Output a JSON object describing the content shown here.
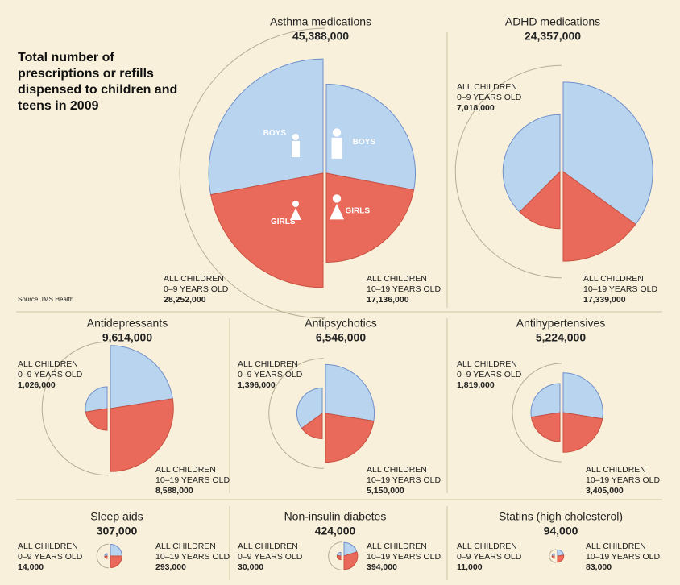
{
  "title": "Total number of prescriptions or refills dispensed to children and teens in 2009",
  "source": "Source: IMS Health",
  "chart_data": [
    {
      "type": "half-pie",
      "title": "Asthma medications",
      "total": 45388000,
      "total_label": "45,388,000",
      "categories": [
        [
          "ALL CHILDREN",
          "0–9 YEARS OLD"
        ],
        [
          "ALL CHILDREN",
          "10–19 YEARS OLD"
        ]
      ],
      "values": [
        28252000,
        17136000
      ],
      "value_labels": [
        "28,252,000",
        "17,136,000"
      ],
      "series": [
        {
          "name": "BOYS",
          "color": "#b9d4ef",
          "values": [
            56,
            56
          ]
        },
        {
          "name": "GIRLS",
          "color": "#e9695b",
          "values": [
            44,
            44
          ]
        }
      ]
    },
    {
      "type": "half-pie",
      "title": "ADHD medications",
      "total": 24357000,
      "total_label": "24,357,000",
      "categories": [
        [
          "ALL CHILDREN",
          "0–9 YEARS OLD"
        ],
        [
          "ALL CHILDREN",
          "10–19 YEARS OLD"
        ]
      ],
      "values": [
        7018000,
        17339000
      ],
      "value_labels": [
        "7,018,000",
        "17,339,000"
      ],
      "series": [
        {
          "color": "#b9d4ef",
          "values": [
            75,
            70
          ]
        },
        {
          "color": "#e9695b",
          "values": [
            25,
            30
          ]
        }
      ]
    },
    {
      "type": "half-pie",
      "title": "Antidepressants",
      "total": 9614000,
      "total_label": "9,614,000",
      "categories": [
        [
          "ALL CHILDREN",
          "0–9 YEARS OLD"
        ],
        [
          "ALL CHILDREN",
          "10–19 YEARS OLD"
        ]
      ],
      "values": [
        1026000,
        8588000
      ],
      "value_labels": [
        "1,026,000",
        "8,588,000"
      ],
      "series": [
        {
          "color": "#b9d4ef",
          "values": [
            55,
            45
          ]
        },
        {
          "color": "#e9695b",
          "values": [
            45,
            55
          ]
        }
      ]
    },
    {
      "type": "half-pie",
      "title": "Antipsychotics",
      "total": 6546000,
      "total_label": "6,546,000",
      "categories": [
        [
          "ALL CHILDREN",
          "0–9 YEARS OLD"
        ],
        [
          "ALL CHILDREN",
          "10–19 YEARS OLD"
        ]
      ],
      "values": [
        1396000,
        5150000
      ],
      "value_labels": [
        "1,396,000",
        "5,150,000"
      ],
      "series": [
        {
          "color": "#b9d4ef",
          "values": [
            70,
            55
          ]
        },
        {
          "color": "#e9695b",
          "values": [
            30,
            45
          ]
        }
      ]
    },
    {
      "type": "half-pie",
      "title": "Antihypertensives",
      "total": 5224000,
      "total_label": "5,224,000",
      "categories": [
        [
          "ALL CHILDREN",
          "0–9 YEARS OLD"
        ],
        [
          "ALL CHILDREN",
          "10–19 YEARS OLD"
        ]
      ],
      "values": [
        1819000,
        3405000
      ],
      "value_labels": [
        "1,819,000",
        "3,405,000"
      ],
      "series": [
        {
          "color": "#b9d4ef",
          "values": [
            55,
            55
          ]
        },
        {
          "color": "#e9695b",
          "values": [
            45,
            45
          ]
        }
      ]
    },
    {
      "type": "half-pie",
      "title": "Sleep aids",
      "total": 307000,
      "total_label": "307,000",
      "categories": [
        [
          "ALL CHILDREN",
          "0–9 YEARS OLD"
        ],
        [
          "ALL CHILDREN",
          "10–19 YEARS OLD"
        ]
      ],
      "values": [
        14000,
        293000
      ],
      "value_labels": [
        "14,000",
        "293,000"
      ],
      "series": [
        {
          "color": "#b9d4ef",
          "values": [
            55,
            50
          ]
        },
        {
          "color": "#e9695b",
          "values": [
            45,
            50
          ]
        }
      ]
    },
    {
      "type": "half-pie",
      "title": "Non-insulin diabetes",
      "total": 424000,
      "total_label": "424,000",
      "categories": [
        [
          "ALL CHILDREN",
          "0–9 YEARS OLD"
        ],
        [
          "ALL CHILDREN",
          "10–19 YEARS OLD"
        ]
      ],
      "values": [
        30000,
        394000
      ],
      "value_labels": [
        "30,000",
        "394,000"
      ],
      "series": [
        {
          "color": "#b9d4ef",
          "values": [
            45,
            40
          ]
        },
        {
          "color": "#e9695b",
          "values": [
            55,
            60
          ]
        }
      ]
    },
    {
      "type": "half-pie",
      "title": "Statins (high cholesterol)",
      "total": 94000,
      "total_label": "94,000",
      "categories": [
        [
          "ALL CHILDREN",
          "0–9 YEARS OLD"
        ],
        [
          "ALL CHILDREN",
          "10–19 YEARS OLD"
        ]
      ],
      "values": [
        11000,
        83000
      ],
      "value_labels": [
        "11,000",
        "83,000"
      ],
      "series": [
        {
          "color": "#b9d4ef",
          "values": [
            50,
            45
          ]
        },
        {
          "color": "#e9695b",
          "values": [
            50,
            55
          ]
        }
      ]
    }
  ]
}
